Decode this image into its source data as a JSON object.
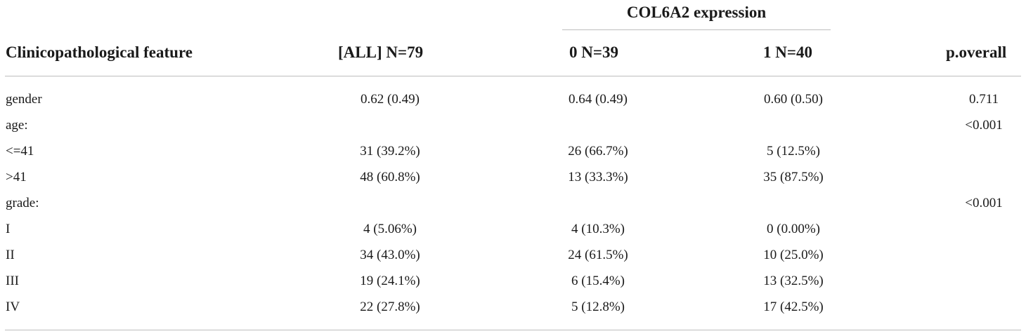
{
  "table": {
    "group_header": "COL6A2 expression",
    "columns": [
      "Clinicopathological feature",
      "[ALL] N=79",
      "0 N=39",
      "1 N=40",
      "p.overall"
    ],
    "rows": [
      [
        "gender",
        "0.62 (0.49)",
        "0.64 (0.49)",
        "0.60 (0.50)",
        "0.711"
      ],
      [
        "age:",
        "",
        "",
        "",
        "<0.001"
      ],
      [
        "<=41",
        "31 (39.2%)",
        "26 (66.7%)",
        "5 (12.5%)",
        ""
      ],
      [
        ">41",
        "48 (60.8%)",
        "13 (33.3%)",
        "35 (87.5%)",
        ""
      ],
      [
        "grade:",
        "",
        "",
        "",
        "<0.001"
      ],
      [
        "I",
        "4 (5.06%)",
        "4 (10.3%)",
        "0 (0.00%)",
        ""
      ],
      [
        "II",
        "34 (43.0%)",
        "24 (61.5%)",
        "10 (25.0%)",
        ""
      ],
      [
        "III",
        "19 (24.1%)",
        "6 (15.4%)",
        "13 (32.5%)",
        ""
      ],
      [
        "IV",
        "22 (27.8%)",
        "5 (12.8%)",
        "17 (42.5%)",
        ""
      ]
    ]
  }
}
